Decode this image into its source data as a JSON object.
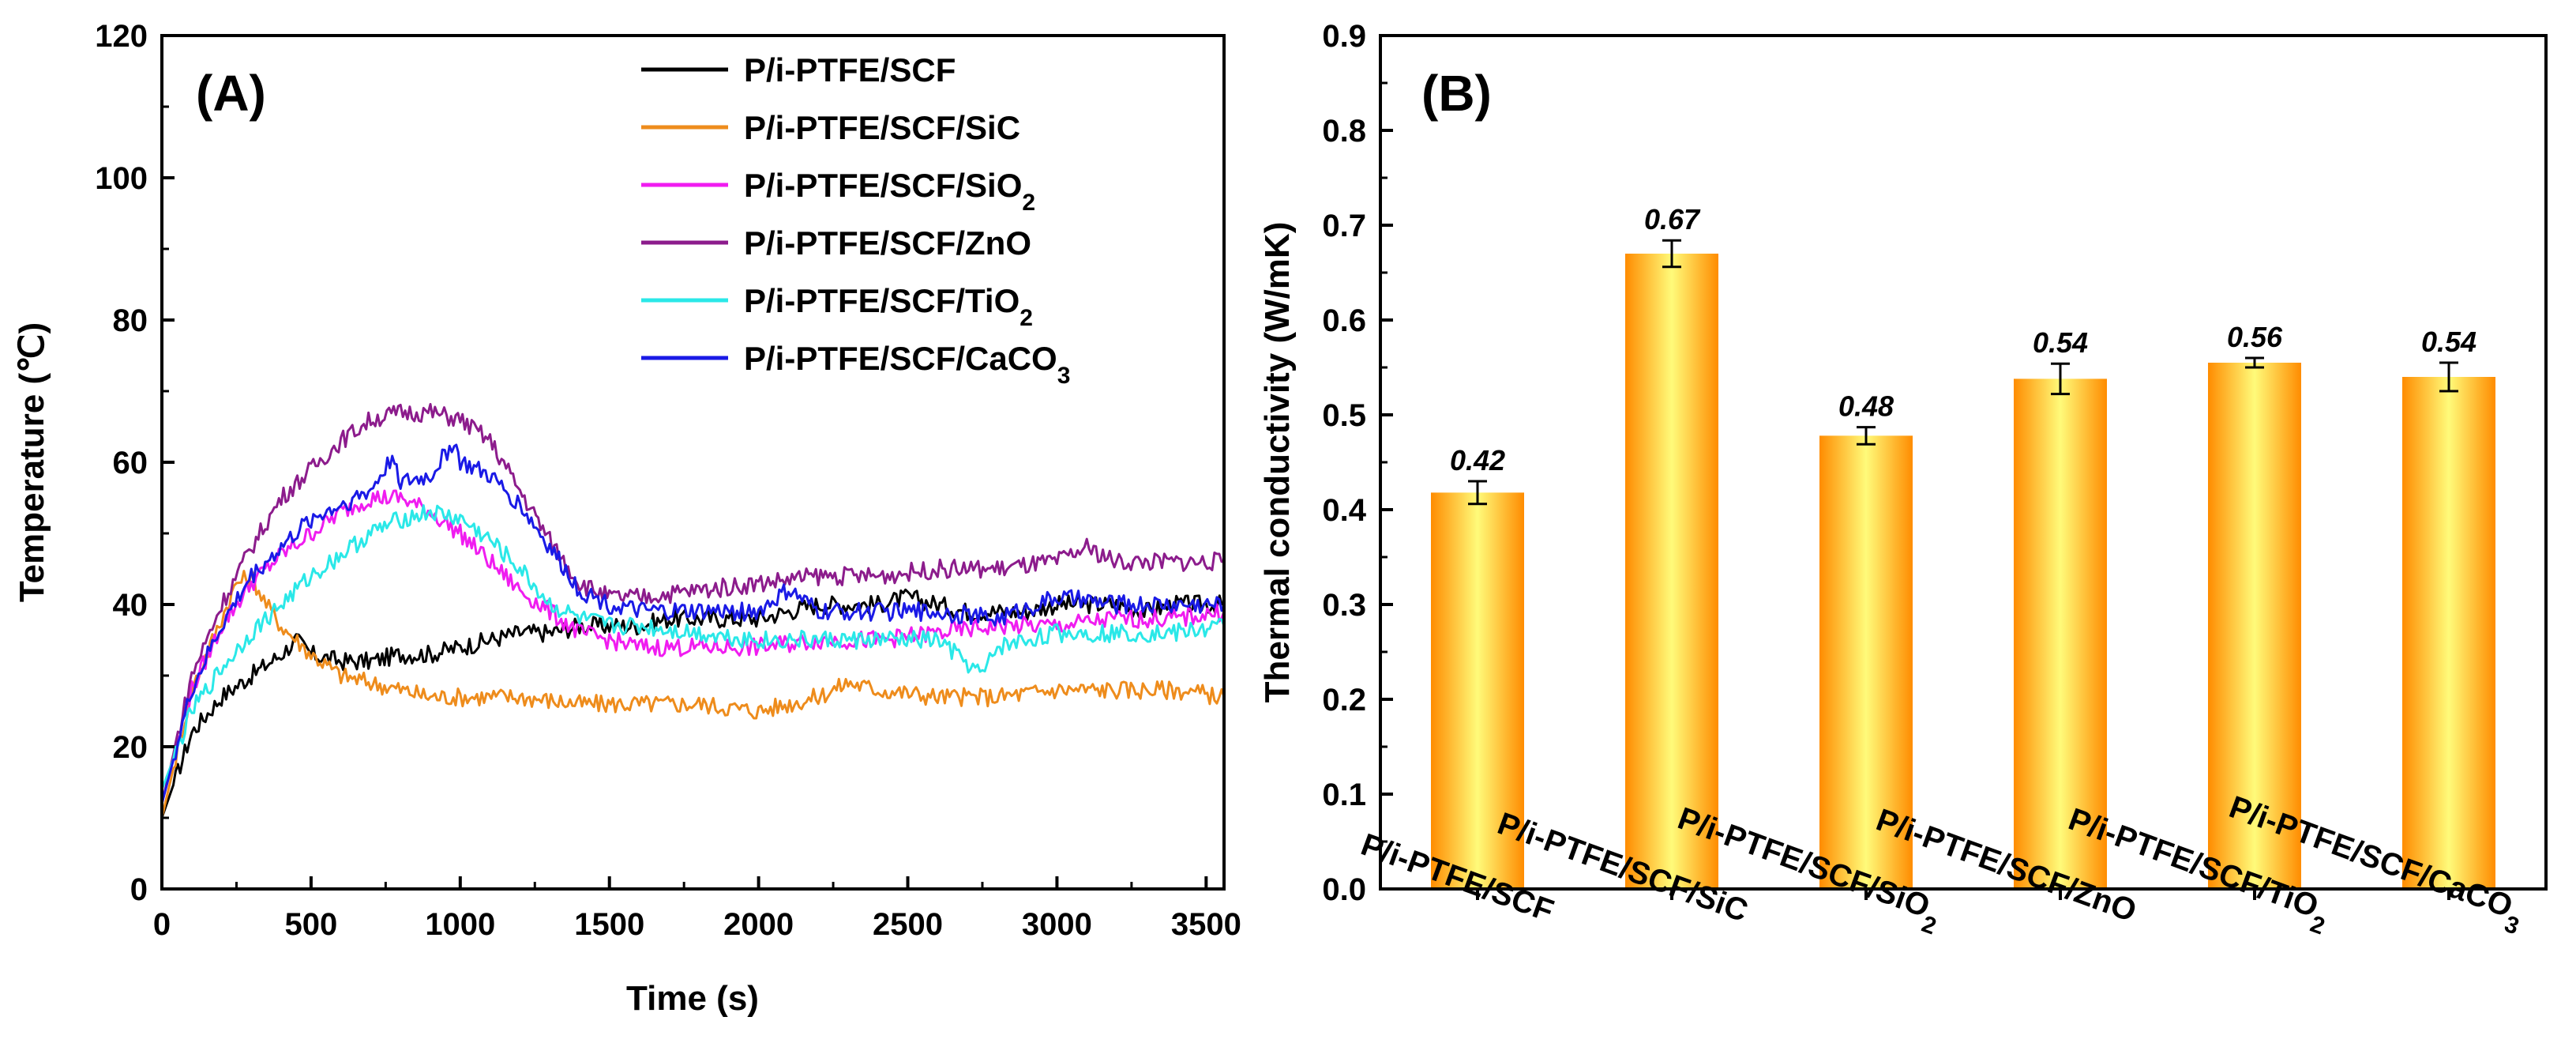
{
  "chart_data": [
    {
      "type": "line",
      "panel_label": "(A)",
      "xlabel": "Time (s)",
      "ylabel": "Temperature (℃)",
      "xlim": [
        0,
        3560
      ],
      "ylim": [
        0,
        120
      ],
      "xticks": [
        0,
        500,
        1000,
        1500,
        2000,
        2500,
        3000,
        3500
      ],
      "yticks": [
        0,
        20,
        40,
        60,
        80,
        100,
        120
      ],
      "legend_position": "top-right",
      "series": [
        {
          "name": "P/i-PTFE/SCF",
          "legend_main": "P/i-PTFE/SCF",
          "legend_sub": "",
          "legend_tail": "",
          "color": "#000000",
          "x": [
            0,
            100,
            200,
            300,
            400,
            450,
            500,
            600,
            700,
            800,
            900,
            1000,
            1100,
            1200,
            1300,
            1400,
            1500,
            1600,
            1700,
            1800,
            1900,
            2000,
            2100,
            2200,
            2300,
            2400,
            2500,
            2600,
            2700,
            2800,
            2900,
            3000,
            3100,
            3200,
            3300,
            3400,
            3500,
            3560
          ],
          "y": [
            10,
            22,
            27,
            30,
            33,
            35,
            33,
            32,
            32,
            33,
            33,
            34,
            35,
            36,
            36,
            37,
            37,
            37,
            38,
            38,
            38,
            38,
            39,
            40,
            40,
            40,
            41,
            40,
            39,
            39,
            39,
            40,
            40,
            40,
            39,
            40,
            40,
            40
          ]
        },
        {
          "name": "P/i-PTFE/SCF/SiC",
          "legend_main": "P/i-PTFE/SCF/SiC",
          "legend_sub": "",
          "legend_tail": "",
          "color": "#ee8c1c",
          "x": [
            0,
            100,
            200,
            250,
            300,
            350,
            400,
            500,
            600,
            700,
            800,
            900,
            1000,
            1200,
            1400,
            1600,
            1800,
            2000,
            2200,
            2300,
            2400,
            2600,
            2800,
            3000,
            3200,
            3400,
            3560
          ],
          "y": [
            10,
            28,
            38,
            43,
            44,
            40,
            37,
            33,
            30,
            29,
            28,
            27,
            27,
            27,
            26,
            26,
            26,
            25,
            27,
            29,
            28,
            27,
            27,
            28,
            28,
            28,
            27
          ]
        },
        {
          "name": "P/i-PTFE/SCF/SiO2",
          "legend_main": "P/i-PTFE/SCF/SiO",
          "legend_sub": "2",
          "legend_tail": "",
          "color": "#f01cf0",
          "x": [
            0,
            100,
            200,
            300,
            400,
            500,
            600,
            700,
            800,
            900,
            1000,
            1100,
            1200,
            1300,
            1400,
            1500,
            1600,
            1700,
            1800,
            2000,
            2200,
            2400,
            2600,
            2800,
            3000,
            3200,
            3400,
            3560
          ],
          "y": [
            12,
            28,
            37,
            43,
            47,
            50,
            53,
            55,
            55,
            53,
            50,
            46,
            42,
            39,
            36,
            35,
            34,
            34,
            34,
            34,
            35,
            35,
            36,
            37,
            37,
            38,
            38,
            39
          ]
        },
        {
          "name": "P/i-PTFE/SCF/ZnO",
          "legend_main": "P/i-PTFE/SCF/ZnO",
          "legend_sub": "",
          "legend_tail": "",
          "color": "#8c1c8c",
          "x": [
            0,
            100,
            200,
            300,
            400,
            500,
            600,
            700,
            800,
            900,
            1000,
            1100,
            1200,
            1300,
            1400,
            1500,
            1600,
            1800,
            2000,
            2200,
            2400,
            2600,
            2800,
            3000,
            3100,
            3200,
            3400,
            3560
          ],
          "y": [
            12,
            30,
            40,
            48,
            55,
            59,
            63,
            66,
            67,
            67,
            66,
            63,
            56,
            49,
            43,
            41,
            41,
            42,
            43,
            44,
            44,
            45,
            45,
            46,
            48,
            46,
            46,
            46
          ]
        },
        {
          "name": "P/i-PTFE/SCF/TiO2",
          "legend_main": "P/i-PTFE/SCF/TiO",
          "legend_sub": "2",
          "legend_tail": "",
          "color": "#2ae8e8",
          "x": [
            0,
            100,
            200,
            300,
            400,
            500,
            600,
            700,
            800,
            900,
            1000,
            1100,
            1200,
            1300,
            1400,
            1500,
            1600,
            1800,
            2000,
            2200,
            2400,
            2600,
            2750,
            2800,
            3000,
            3200,
            3400,
            3560
          ],
          "y": [
            14,
            25,
            31,
            36,
            40,
            44,
            47,
            50,
            52,
            53,
            52,
            49,
            45,
            40,
            38,
            37,
            37,
            36,
            35,
            35,
            35,
            35,
            30,
            34,
            36,
            36,
            36,
            37
          ]
        },
        {
          "name": "P/i-PTFE/SCF/CaCO3",
          "legend_main": "P/i-PTFE/SCF/CaCO",
          "legend_sub": "3",
          "legend_tail": "",
          "color": "#1a1ae6",
          "x": [
            0,
            100,
            200,
            300,
            400,
            500,
            600,
            700,
            780,
            800,
            900,
            980,
            1000,
            1100,
            1200,
            1300,
            1400,
            1500,
            1600,
            1800,
            2000,
            2100,
            2200,
            2400,
            2600,
            2800,
            3000,
            3200,
            3400,
            3560
          ],
          "y": [
            12,
            28,
            37,
            44,
            48,
            52,
            54,
            56,
            61,
            57,
            58,
            63,
            60,
            58,
            54,
            48,
            42,
            40,
            39,
            39,
            39,
            42,
            39,
            39,
            39,
            38,
            41,
            40,
            40,
            40
          ]
        }
      ]
    },
    {
      "type": "bar",
      "panel_label": "(B)",
      "xlabel": "",
      "ylabel": "Thermal conductivity (W/mK)",
      "ylim": [
        0,
        0.9
      ],
      "yticks": [
        "0.0",
        "0.1",
        "0.2",
        "0.3",
        "0.4",
        "0.5",
        "0.6",
        "0.7",
        "0.8",
        "0.9"
      ],
      "categories": [
        "P/i-PTFE/SCF",
        "P/i-PTFE/SCF/SiC",
        "P/i-PTFE/SCF/SiO2",
        "P/i-PTFE/SCF/ZnO",
        "P/i-PTFE/SCF/TiO2",
        "P/i-PTFE/SCF/CaCO3"
      ],
      "category_labels": [
        {
          "main": "P/i-PTFE/SCF",
          "sub": ""
        },
        {
          "main": "P/i-PTFE/SCF/SiC",
          "sub": ""
        },
        {
          "main": "P/i-PTFE/SCF/SiO",
          "sub": "2"
        },
        {
          "main": "P/i-PTFE/SCF/ZnO",
          "sub": ""
        },
        {
          "main": "P/i-PTFE/SCF/TiO",
          "sub": "2"
        },
        {
          "main": "P/i-PTFE/SCF/CaCO",
          "sub": "3"
        }
      ],
      "values": [
        0.418,
        0.67,
        0.478,
        0.538,
        0.555,
        0.54
      ],
      "errors": [
        0.012,
        0.014,
        0.009,
        0.016,
        0.005,
        0.015
      ],
      "data_labels": [
        "0.42",
        "0.67",
        "0.48",
        "0.54",
        "0.56",
        "0.54"
      ],
      "bar_color_center": "#fffb7a",
      "bar_color_edge": "#ff8c00"
    }
  ]
}
